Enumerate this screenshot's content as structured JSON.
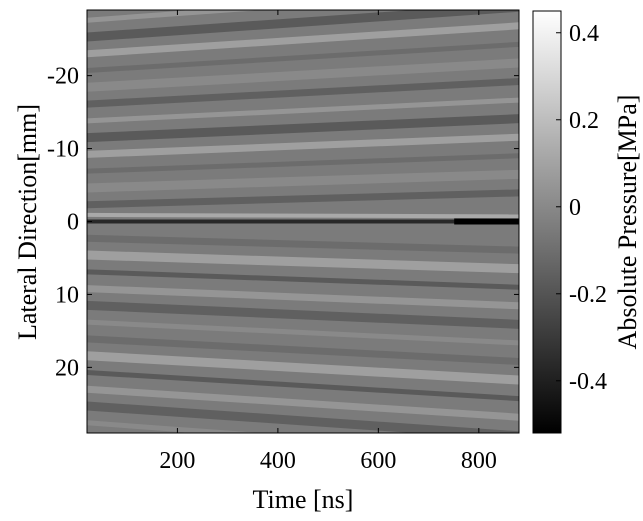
{
  "chart_data": {
    "type": "heatmap",
    "title": "",
    "xlabel": "Time [ns]",
    "ylabel": "Lateral Direction[mm]",
    "x_ticks": [
      200,
      400,
      600,
      800
    ],
    "x_range": [
      20,
      880
    ],
    "y_ticks": [
      -20,
      -10,
      0,
      10,
      20
    ],
    "y_range": [
      -29,
      29
    ],
    "y_reversed": true,
    "colormap": "gray",
    "colorbar": {
      "label": "Absolute Pressure[MPa]",
      "ticks": [
        0.4,
        0.2,
        0,
        -0.2,
        -0.4
      ],
      "range": [
        -0.52,
        0.45
      ]
    },
    "stripe_spacing_mm": 2.3,
    "stripe_slope_mm_per_ns": 0.004
  }
}
